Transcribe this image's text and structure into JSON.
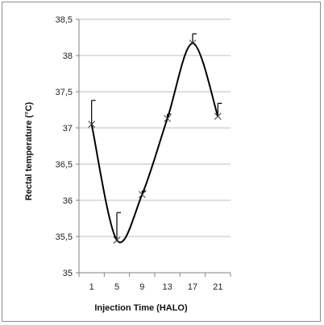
{
  "chart_data": {
    "type": "line",
    "title": "",
    "xlabel": "Injection Time (HALO)",
    "ylabel": "Rectal temperature (°C)",
    "x": [
      1,
      5,
      9,
      13,
      17,
      21
    ],
    "x_tick_labels": [
      "1",
      "5",
      "9",
      "13",
      "17",
      "21"
    ],
    "ylim": [
      35,
      38.5
    ],
    "y_ticks": [
      35,
      35.5,
      36,
      36.5,
      37,
      37.5,
      38,
      38.5
    ],
    "y_tick_labels": [
      "35",
      "35,5",
      "36",
      "36,5",
      "37",
      "37,5",
      "38",
      "38,5"
    ],
    "grid": true,
    "legend": "none",
    "line_color": "#000000",
    "grid_color": "#bfbfbf",
    "series": [
      {
        "values": [
          37.05,
          35.45,
          36.08,
          37.13,
          38.17,
          37.16
        ],
        "error_upper": [
          0.33,
          0.38,
          0.05,
          0.06,
          0.13,
          0.18
        ],
        "marker": "x",
        "smooth": true
      }
    ]
  }
}
